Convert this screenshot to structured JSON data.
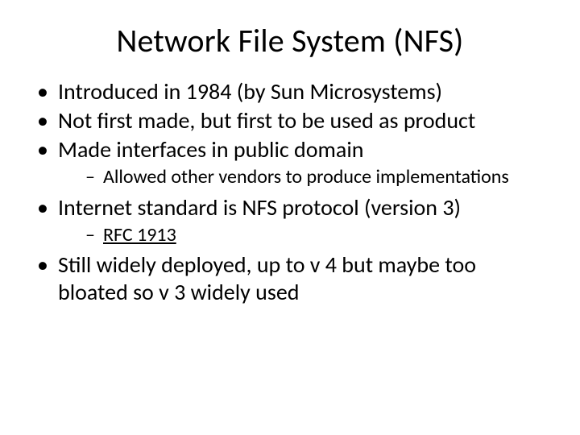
{
  "slide": {
    "title": "Network File System (NFS)",
    "title_fontsize": 40,
    "body_fontsize": 28,
    "sub_fontsize": 24,
    "text_color": "#000000",
    "background_color": "#ffffff",
    "font_family": "Calibri",
    "bullets": [
      {
        "text": "Introduced in 1984 (by Sun Microsystems)"
      },
      {
        "text": "Not first made, but first to be used as product"
      },
      {
        "text": "Made interfaces in public domain",
        "sub": [
          {
            "text": "Allowed other vendors to produce implementations"
          }
        ]
      },
      {
        "text": "Internet standard is NFS protocol (version 3)",
        "sub": [
          {
            "text": "RFC 1913",
            "link": true
          }
        ]
      },
      {
        "text": "Still widely deployed, up to v 4 but maybe too bloated so v 3 widely used"
      }
    ]
  }
}
